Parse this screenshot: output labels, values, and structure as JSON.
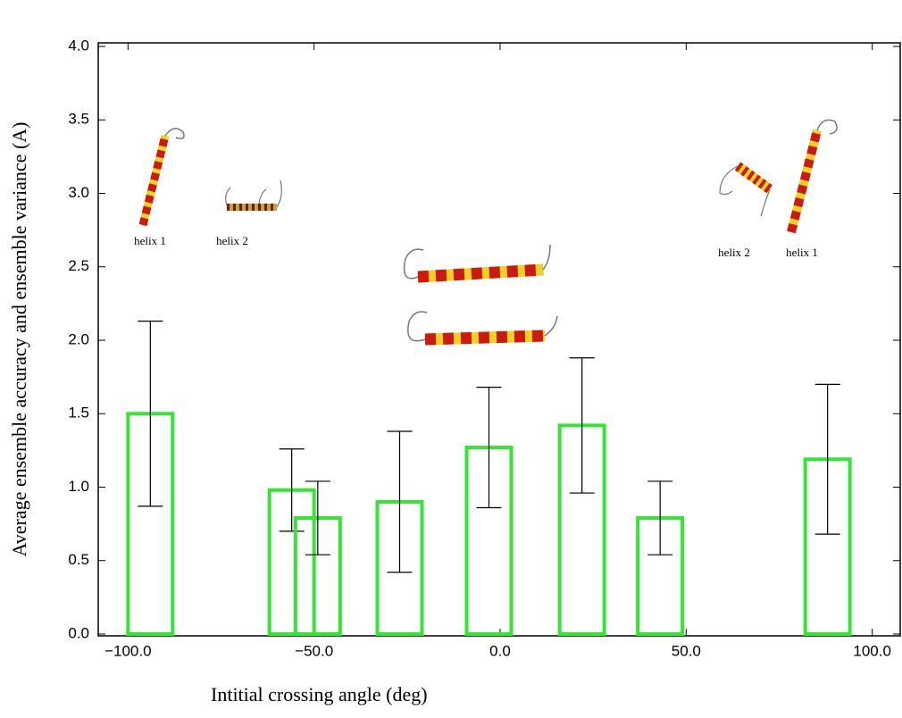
{
  "chart_data": {
    "type": "bar",
    "x_label": "Intitial crossing angle (deg)",
    "y_label": "Average ensemble accuracy and ensemble variance (A)",
    "x": [
      -94,
      -56,
      -49,
      -27,
      -3,
      22,
      43,
      88
    ],
    "values": [
      1.5,
      0.98,
      0.79,
      0.9,
      1.27,
      1.42,
      0.79,
      1.19
    ],
    "errors": [
      0.63,
      0.28,
      0.25,
      0.48,
      0.41,
      0.46,
      0.25,
      0.51
    ],
    "color": "#33e633",
    "error_color": "#000000",
    "xlim": [
      -108,
      108
    ],
    "ylim": [
      0,
      4
    ],
    "xticks": [
      {
        "value": -100,
        "label": "−100.0"
      },
      {
        "value": -50,
        "label": "−50.0"
      },
      {
        "value": 0,
        "label": "0.0"
      },
      {
        "value": 50,
        "label": "50.0"
      },
      {
        "value": 100,
        "label": "100.0"
      }
    ],
    "yticks": [
      {
        "value": 0,
        "label": "0.0"
      },
      {
        "value": 0.5,
        "label": "0.5"
      },
      {
        "value": 1,
        "label": "1.0"
      },
      {
        "value": 1.5,
        "label": "1.5"
      },
      {
        "value": 2,
        "label": "2.0"
      },
      {
        "value": 2.5,
        "label": "2.5"
      },
      {
        "value": 3,
        "label": "3.0"
      },
      {
        "value": 3.5,
        "label": "3.5"
      },
      {
        "value": 4,
        "label": "4.0"
      }
    ],
    "annotations": [
      "helix 1",
      "helix 2",
      "helix 2",
      "helix 1"
    ]
  }
}
